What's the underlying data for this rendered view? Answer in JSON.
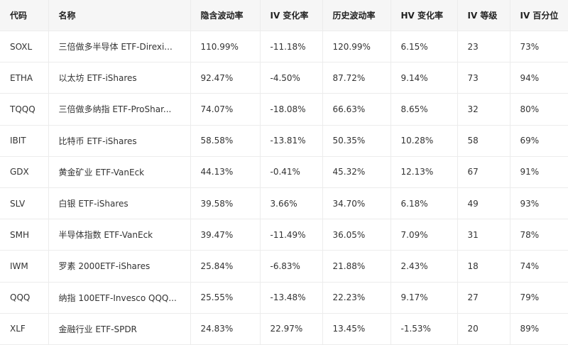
{
  "table": {
    "header": [
      "代码",
      "名称",
      "隐含波动率",
      "IV 变化率",
      "历史波动率",
      "HV 变化率",
      "IV 等级",
      "IV 百分位"
    ],
    "rows": [
      [
        "SOXL",
        "三倍做多半导体 ETF-Direxi...",
        "110.99%",
        "-11.18%",
        "120.99%",
        "6.15%",
        "23",
        "73%"
      ],
      [
        "ETHA",
        "以太坊 ETF-iShares",
        "92.47%",
        "-4.50%",
        "87.72%",
        "9.14%",
        "73",
        "94%"
      ],
      [
        "TQQQ",
        "三倍做多纳指 ETF-ProShar...",
        "74.07%",
        "-18.08%",
        "66.63%",
        "8.65%",
        "32",
        "80%"
      ],
      [
        "IBIT",
        "比特币 ETF-iShares",
        "58.58%",
        "-13.81%",
        "50.35%",
        "10.28%",
        "58",
        "69%"
      ],
      [
        "GDX",
        "黄金矿业 ETF-VanEck",
        "44.13%",
        "-0.41%",
        "45.32%",
        "12.13%",
        "67",
        "91%"
      ],
      [
        "SLV",
        "白银 ETF-iShares",
        "39.58%",
        "3.66%",
        "34.70%",
        "6.18%",
        "49",
        "93%"
      ],
      [
        "SMH",
        "半导体指数 ETF-VanEck",
        "39.47%",
        "-11.49%",
        "36.05%",
        "7.09%",
        "31",
        "78%"
      ],
      [
        "IWM",
        "罗素 2000ETF-iShares",
        "25.84%",
        "-6.83%",
        "21.88%",
        "2.43%",
        "18",
        "74%"
      ],
      [
        "QQQ",
        "纳指 100ETF-Invesco QQQ...",
        "25.55%",
        "-13.48%",
        "22.23%",
        "9.17%",
        "27",
        "79%"
      ],
      [
        "XLF",
        "金融行业 ETF-SPDR",
        "24.83%",
        "22.97%",
        "13.45%",
        "-1.53%",
        "20",
        "89%"
      ]
    ]
  }
}
